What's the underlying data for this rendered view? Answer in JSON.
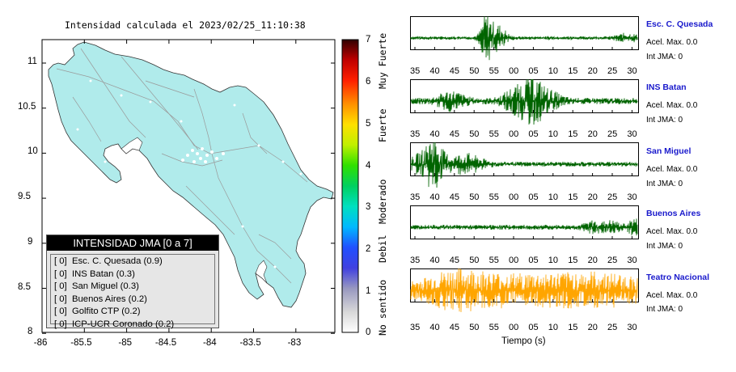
{
  "map": {
    "title": "Intensidad calculada el 2023/02/25_11:10:38",
    "y_ticks": [
      "11",
      "10.5",
      "10",
      "9.5",
      "9",
      "8.5",
      "8"
    ],
    "x_ticks": [
      "-86",
      "-85.5",
      "-85",
      "-84.5",
      "-84",
      "-83.5",
      "-83"
    ],
    "land_color": "#b0ebeb",
    "legend": {
      "header": "INTENSIDAD JMA [0 a 7]",
      "rows": [
        "[ 0]  Esc. C. Quesada (0.9)",
        "[ 0]  INS Batan (0.3)",
        "[ 0]  San Miguel (0.3)",
        "[ 0]  Buenos Aires (0.2)",
        "[ 0]  Golfito CTP (0.2)",
        "[ 0]  ICP-UCR Coronado (0.2)"
      ]
    }
  },
  "scale": {
    "numbers": [
      "7",
      "6",
      "5",
      "4",
      "3",
      "2",
      "1",
      "0"
    ],
    "words": [
      "Muy Fuerte",
      "Fuerte",
      "Moderado",
      "Debil",
      "No sentido"
    ]
  },
  "waveforms": {
    "x_ticks": [
      "35",
      "40",
      "45",
      "50",
      "55",
      "00",
      "05",
      "10",
      "15",
      "20",
      "25",
      "30"
    ],
    "x_label": "Tiempo (s)",
    "stations": [
      {
        "name": "Esc. C. Quesada",
        "acel": "Acel. Max. 0.0",
        "int": "Int JMA: 0",
        "color": "#006400"
      },
      {
        "name": "INS Batan",
        "acel": "Acel. Max. 0.0",
        "int": "Int JMA: 0",
        "color": "#006400"
      },
      {
        "name": "San Miguel",
        "acel": "Acel. Max. 0.0",
        "int": "Int JMA: 0",
        "color": "#006400"
      },
      {
        "name": "Buenos Aires",
        "acel": "Acel. Max. 0.0",
        "int": "Int JMA: 0",
        "color": "#006400"
      },
      {
        "name": "Teatro Nacional",
        "acel": "Acel. Max. 0.0",
        "int": "Int JMA: 0",
        "color": "#ffa500"
      }
    ]
  }
}
